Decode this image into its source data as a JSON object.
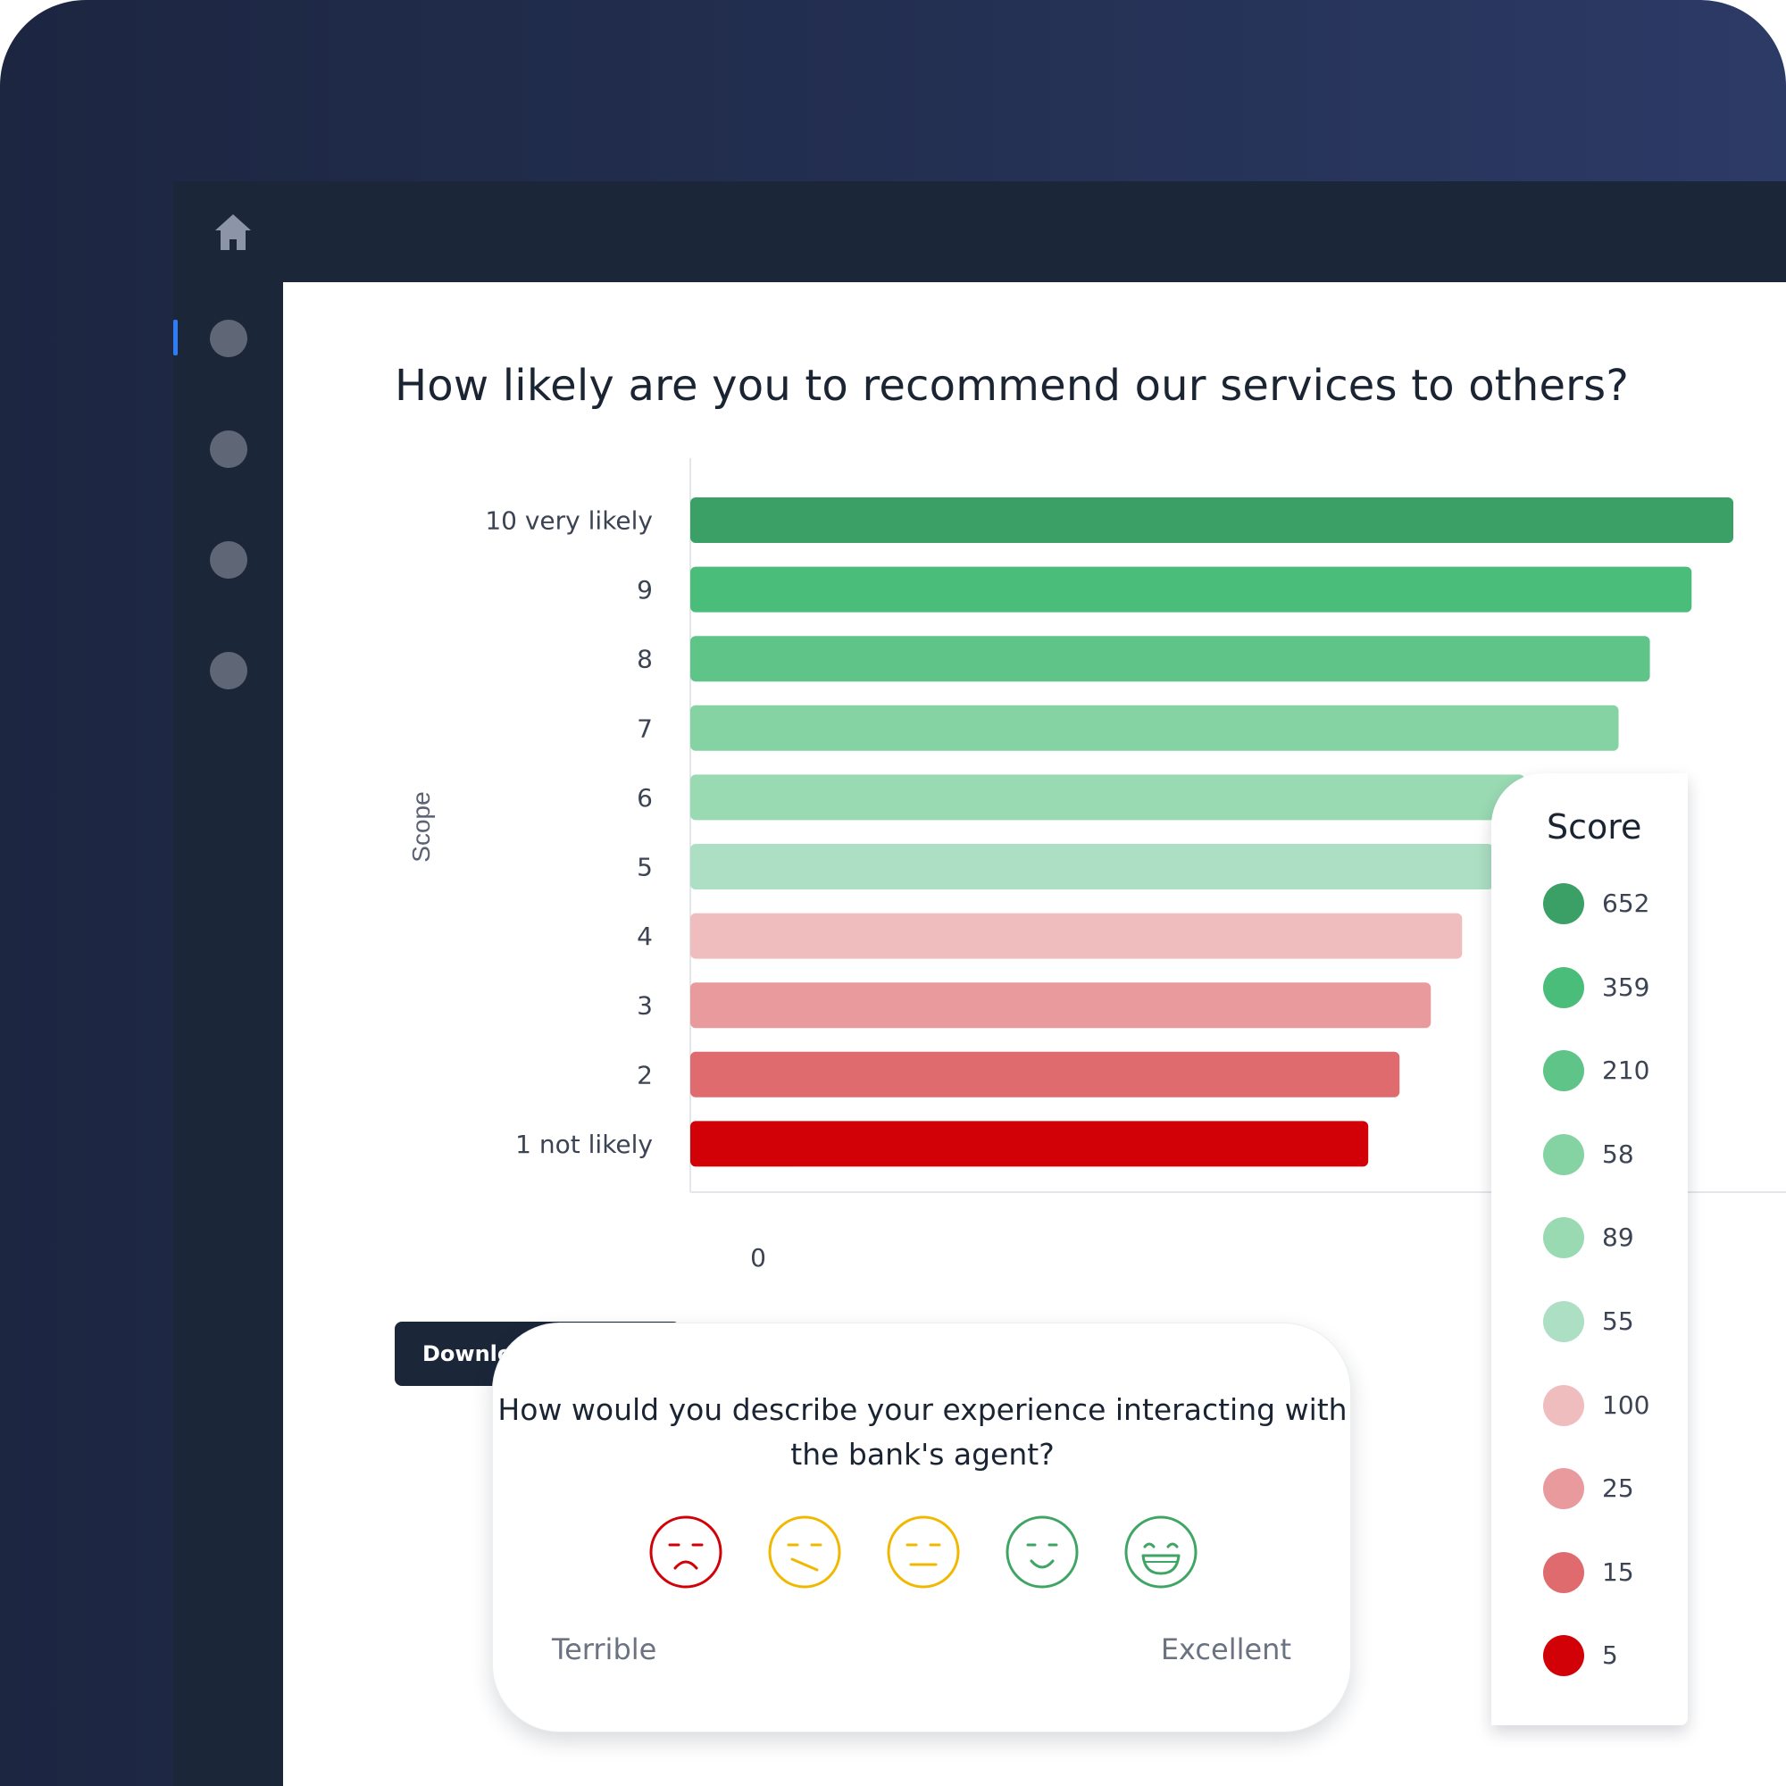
{
  "page": {
    "title": "How likely are you to recommend our services to others?"
  },
  "nav": {
    "items": [
      "home",
      "item-1",
      "item-2",
      "item-3",
      "item-4"
    ]
  },
  "chart_data": {
    "type": "bar",
    "orientation": "horizontal",
    "title": "How likely are you to recommend our services to others?",
    "ylabel": "Scope",
    "xlabel": "",
    "categories": [
      "10 very likely",
      "9",
      "8",
      "7",
      "6",
      "5",
      "4",
      "3",
      "2",
      "1 not likely"
    ],
    "values": [
      652,
      359,
      210,
      58,
      89,
      55,
      100,
      25,
      15,
      5
    ],
    "colors": [
      "#3ba066",
      "#4abd7a",
      "#5fc488",
      "#85d3a3",
      "#99dab3",
      "#acdfc3",
      "#efbdbe",
      "#e99a9d",
      "#e06b6e",
      "#d20007"
    ],
    "x_ticks": [
      "0"
    ],
    "grid": false,
    "legend": {
      "title": "Score",
      "position": "right",
      "entries": [
        "652",
        "359",
        "210",
        "58",
        "89",
        "55",
        "100",
        "25",
        "15",
        "5"
      ]
    },
    "bar_fill_fractions": [
      1.0,
      0.96,
      0.92,
      0.89,
      0.8,
      0.77,
      0.74,
      0.71,
      0.68,
      0.65
    ]
  },
  "actions": {
    "download_label": "Download responses"
  },
  "survey": {
    "question": "How would you describe your experience interacting with the bank's agent?",
    "low_label": "Terrible",
    "high_label": "Excellent",
    "faces": [
      {
        "name": "terrible-face-icon",
        "color": "#d20007"
      },
      {
        "name": "bad-face-icon",
        "color": "#f0b800"
      },
      {
        "name": "neutral-face-icon",
        "color": "#f0b800"
      },
      {
        "name": "good-face-icon",
        "color": "#3fa565"
      },
      {
        "name": "excellent-face-icon",
        "color": "#3fa565"
      }
    ]
  }
}
